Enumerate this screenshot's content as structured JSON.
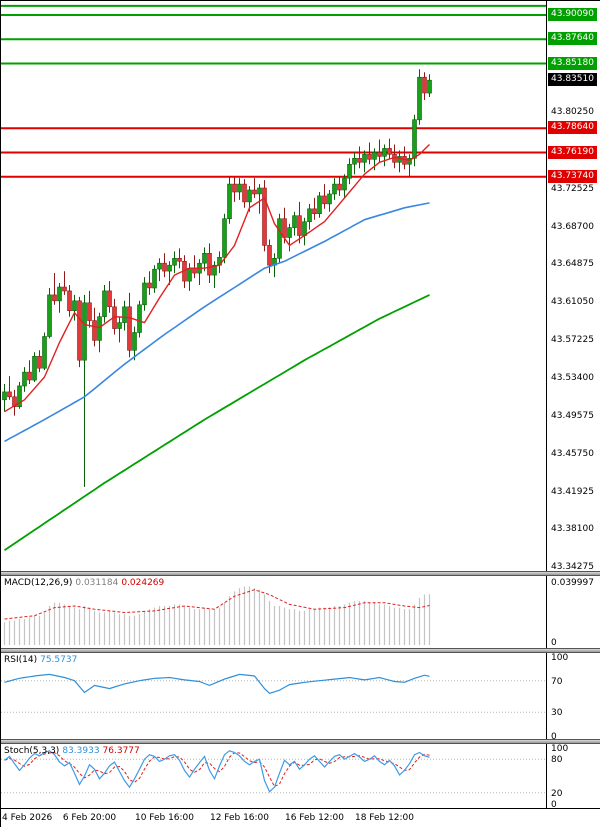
{
  "colors": {
    "up": "#18A018",
    "down": "#E23A3A",
    "up_dark": "#0B600B",
    "down_dark": "#8F1A1A",
    "macd_hist": "#C4C4C4",
    "signal": "#E02020",
    "rsi": "#2F8FD8",
    "stoch_k": "#3E9BE9",
    "stoch_d": "#E02020",
    "level_green": "#00A000",
    "level_red": "#E00000",
    "current_bg": "#000000"
  },
  "price_scale": {
    "max": 43.915,
    "min": 43.339,
    "ticks": [
      "43.80250",
      "43.72525",
      "43.68700",
      "43.64875",
      "43.61050",
      "43.57225",
      "43.53400",
      "43.49575",
      "43.45750",
      "43.41925",
      "43.38100",
      "43.34275"
    ]
  },
  "levels": [
    {
      "price": 43.91,
      "color": "#00A000",
      "label": null
    },
    {
      "price": 43.9009,
      "color": "#00A000",
      "label": "43.90090"
    },
    {
      "price": 43.8764,
      "color": "#00A000",
      "label": "43.87640"
    },
    {
      "price": 43.8518,
      "color": "#00A000",
      "label": "43.85180"
    },
    {
      "price": 43.7864,
      "color": "#E00000",
      "label": "43.78640"
    },
    {
      "price": 43.7619,
      "color": "#E00000",
      "label": "43.76190"
    },
    {
      "price": 43.7374,
      "color": "#E00000",
      "label": "43.73740"
    }
  ],
  "current_price": {
    "value": 43.8351,
    "label": "43.83510"
  },
  "indicators": {
    "macd": {
      "name": "MACD(12,26,9)",
      "value1": "0.031184",
      "value2": "0.024269",
      "scale_max_label": "0.039997",
      "scale_min_label": "0"
    },
    "rsi": {
      "name": "RSI(14)",
      "value": "75.5737",
      "ticks": [
        100,
        70,
        30,
        0
      ]
    },
    "stoch": {
      "name": "Stoch(5,3,3)",
      "value1": "83.3933",
      "value2": "76.3777",
      "ticks": [
        100,
        80,
        20,
        0
      ]
    }
  },
  "time_axis": {
    "labels": [
      {
        "text": "4 Feb 2026",
        "i": 1
      },
      {
        "text": "6 Feb 20:00",
        "i": 17
      },
      {
        "text": "10 Feb 16:00",
        "i": 32
      },
      {
        "text": "12 Feb 16:00",
        "i": 47
      },
      {
        "text": "16 Feb 12:00",
        "i": 62
      },
      {
        "text": "18 Feb 12:00",
        "i": 76
      }
    ]
  },
  "chart_data": [
    {
      "type": "candlestick",
      "title": "",
      "ylim": [
        43.339,
        43.915
      ],
      "candles": [
        [
          43.512,
          43.528,
          43.5,
          43.52
        ],
        [
          43.52,
          43.536,
          43.512,
          43.515
        ],
        [
          43.515,
          43.522,
          43.496,
          43.505
        ],
        [
          43.505,
          43.53,
          43.503,
          43.526
        ],
        [
          43.526,
          43.545,
          43.52,
          43.54
        ],
        [
          43.54,
          43.552,
          43.528,
          43.532
        ],
        [
          43.532,
          43.56,
          43.53,
          43.556
        ],
        [
          43.556,
          43.562,
          43.54,
          43.544
        ],
        [
          43.544,
          43.58,
          43.542,
          43.576
        ],
        [
          43.576,
          43.625,
          43.574,
          43.618
        ],
        [
          43.618,
          43.64,
          43.608,
          43.612
        ],
        [
          43.612,
          43.63,
          43.6,
          43.626
        ],
        [
          43.626,
          43.642,
          43.618,
          43.622
        ],
        [
          43.622,
          43.628,
          43.596,
          43.602
        ],
        [
          43.602,
          43.618,
          43.592,
          43.612
        ],
        [
          43.612,
          43.616,
          43.545,
          43.552
        ],
        [
          43.552,
          43.618,
          43.424,
          43.61
        ],
        [
          43.61,
          43.622,
          43.585,
          43.592
        ],
        [
          43.592,
          43.605,
          43.566,
          43.572
        ],
        [
          43.572,
          43.6,
          43.56,
          43.596
        ],
        [
          43.596,
          43.628,
          43.59,
          43.622
        ],
        [
          43.622,
          43.632,
          43.6,
          43.606
        ],
        [
          43.606,
          43.614,
          43.578,
          43.584
        ],
        [
          43.584,
          43.596,
          43.57,
          43.59
        ],
        [
          43.59,
          43.612,
          43.582,
          43.606
        ],
        [
          43.606,
          43.62,
          43.555,
          43.562
        ],
        [
          43.562,
          43.586,
          43.552,
          43.58
        ],
        [
          43.58,
          43.612,
          43.575,
          43.608
        ],
        [
          43.608,
          43.636,
          43.602,
          43.63
        ],
        [
          43.63,
          43.642,
          43.618,
          43.625
        ],
        [
          43.625,
          43.648,
          43.62,
          43.644
        ],
        [
          43.644,
          43.655,
          43.632,
          43.65
        ],
        [
          43.65,
          43.66,
          43.636,
          43.642
        ],
        [
          43.642,
          43.652,
          43.628,
          43.648
        ],
        [
          43.648,
          43.662,
          43.64,
          43.655
        ],
        [
          43.655,
          43.665,
          43.645,
          43.652
        ],
        [
          43.652,
          43.658,
          43.625,
          43.632
        ],
        [
          43.632,
          43.65,
          43.622,
          43.645
        ],
        [
          43.645,
          43.658,
          43.635,
          43.64
        ],
        [
          43.64,
          43.654,
          43.628,
          43.65
        ],
        [
          43.65,
          43.666,
          43.642,
          43.66
        ],
        [
          43.66,
          43.67,
          43.63,
          43.638
        ],
        [
          43.638,
          43.652,
          43.625,
          43.648
        ],
        [
          43.648,
          43.662,
          43.64,
          43.656
        ],
        [
          43.656,
          43.7,
          43.65,
          43.695
        ],
        [
          43.695,
          43.738,
          43.69,
          43.73
        ],
        [
          43.73,
          43.737,
          43.712,
          43.722
        ],
        [
          43.722,
          43.736,
          43.714,
          43.73
        ],
        [
          43.73,
          43.735,
          43.706,
          43.712
        ],
        [
          43.712,
          43.728,
          43.702,
          43.724
        ],
        [
          43.724,
          43.736,
          43.716,
          43.72
        ],
        [
          43.72,
          43.73,
          43.7,
          43.726
        ],
        [
          43.726,
          43.734,
          43.662,
          43.668
        ],
        [
          43.668,
          43.674,
          43.64,
          43.648
        ],
        [
          43.648,
          43.66,
          43.636,
          43.655
        ],
        [
          43.655,
          43.7,
          43.65,
          43.695
        ],
        [
          43.695,
          43.706,
          43.67,
          43.676
        ],
        [
          43.676,
          43.69,
          43.662,
          43.686
        ],
        [
          43.686,
          43.702,
          43.678,
          43.698
        ],
        [
          43.698,
          43.712,
          43.67,
          43.678
        ],
        [
          43.678,
          43.696,
          43.668,
          43.692
        ],
        [
          43.692,
          43.71,
          43.684,
          43.705
        ],
        [
          43.705,
          43.716,
          43.694,
          43.7
        ],
        [
          43.7,
          43.722,
          43.696,
          43.718
        ],
        [
          43.718,
          43.73,
          43.705,
          43.71
        ],
        [
          43.71,
          43.724,
          43.702,
          43.72
        ],
        [
          43.72,
          43.736,
          43.714,
          43.73
        ],
        [
          43.73,
          43.738,
          43.718,
          43.724
        ],
        [
          43.724,
          43.74,
          43.716,
          43.736
        ],
        [
          43.736,
          43.756,
          43.73,
          43.75
        ],
        [
          43.75,
          43.762,
          43.74,
          43.756
        ],
        [
          43.756,
          43.768,
          43.746,
          43.752
        ],
        [
          43.752,
          43.764,
          43.742,
          43.76
        ],
        [
          43.76,
          43.772,
          43.75,
          43.755
        ],
        [
          43.755,
          43.766,
          43.744,
          43.762
        ],
        [
          43.762,
          43.775,
          43.752,
          43.758
        ],
        [
          43.758,
          43.77,
          43.748,
          43.766
        ],
        [
          43.766,
          43.776,
          43.755,
          43.76
        ],
        [
          43.76,
          43.77,
          43.746,
          43.752
        ],
        [
          43.752,
          43.764,
          43.742,
          43.758
        ],
        [
          43.758,
          43.768,
          43.745,
          43.75
        ],
        [
          43.75,
          43.76,
          43.738,
          43.756
        ],
        [
          43.756,
          43.8,
          43.748,
          43.795
        ],
        [
          43.795,
          43.846,
          43.79,
          43.838
        ],
        [
          43.838,
          43.843,
          43.815,
          43.822
        ],
        [
          43.822,
          43.841,
          43.818,
          43.835
        ]
      ],
      "overlays": [
        {
          "name": "ma-fast-red-line",
          "color": "#E02020",
          "width": 1.4,
          "points": [
            [
              0,
              43.5
            ],
            [
              4,
              43.512
            ],
            [
              8,
              43.535
            ],
            [
              11,
              43.57
            ],
            [
              14,
              43.6
            ],
            [
              16,
              43.588
            ],
            [
              19,
              43.585
            ],
            [
              22,
              43.596
            ],
            [
              25,
              43.595
            ],
            [
              28,
              43.59
            ],
            [
              31,
              43.615
            ],
            [
              34,
              43.638
            ],
            [
              37,
              43.645
            ],
            [
              40,
              43.645
            ],
            [
              43,
              43.648
            ],
            [
              46,
              43.668
            ],
            [
              49,
              43.706
            ],
            [
              52,
              43.716
            ],
            [
              54,
              43.69
            ],
            [
              57,
              43.668
            ],
            [
              60,
              43.678
            ],
            [
              64,
              43.692
            ],
            [
              68,
              43.716
            ],
            [
              72,
              43.74
            ],
            [
              75,
              43.752
            ],
            [
              78,
              43.757
            ],
            [
              81,
              43.754
            ],
            [
              83,
              43.76
            ],
            [
              85,
              43.77
            ]
          ]
        },
        {
          "name": "ma-mid-blue-line",
          "color": "#3A87E0",
          "width": 1.6,
          "points": [
            [
              0,
              43.47
            ],
            [
              8,
              43.492
            ],
            [
              16,
              43.515
            ],
            [
              24,
              43.548
            ],
            [
              32,
              43.578
            ],
            [
              40,
              43.606
            ],
            [
              48,
              43.632
            ],
            [
              52,
              43.645
            ],
            [
              56,
              43.652
            ],
            [
              64,
              43.672
            ],
            [
              72,
              43.694
            ],
            [
              80,
              43.706
            ],
            [
              85,
              43.711
            ]
          ]
        },
        {
          "name": "ma-slow-green-line",
          "color": "#00A000",
          "width": 1.8,
          "points": [
            [
              0,
              43.36
            ],
            [
              20,
              43.428
            ],
            [
              40,
              43.492
            ],
            [
              60,
              43.552
            ],
            [
              75,
              43.594
            ],
            [
              85,
              43.618
            ]
          ]
        }
      ]
    },
    {
      "type": "bar",
      "title": "MACD(12,26,9)",
      "ylim": [
        0,
        0.039997
      ],
      "values": [
        0.014,
        0.015,
        0.015,
        0.016,
        0.016,
        0.017,
        0.018,
        0.018,
        0.02,
        0.024,
        0.026,
        0.026,
        0.025,
        0.024,
        0.023,
        0.022,
        0.024,
        0.023,
        0.021,
        0.02,
        0.02,
        0.021,
        0.02,
        0.019,
        0.019,
        0.018,
        0.018,
        0.019,
        0.021,
        0.022,
        0.023,
        0.024,
        0.024,
        0.024,
        0.025,
        0.025,
        0.024,
        0.023,
        0.022,
        0.022,
        0.023,
        0.022,
        0.022,
        0.023,
        0.026,
        0.03,
        0.033,
        0.035,
        0.036,
        0.036,
        0.035,
        0.034,
        0.031,
        0.027,
        0.024,
        0.024,
        0.023,
        0.022,
        0.022,
        0.021,
        0.021,
        0.022,
        0.022,
        0.023,
        0.023,
        0.023,
        0.024,
        0.024,
        0.025,
        0.026,
        0.027,
        0.027,
        0.027,
        0.026,
        0.026,
        0.025,
        0.025,
        0.024,
        0.023,
        0.023,
        0.022,
        0.022,
        0.025,
        0.029,
        0.031,
        0.0312
      ],
      "signal_points": [
        [
          0,
          0.016
        ],
        [
          6,
          0.018
        ],
        [
          10,
          0.023
        ],
        [
          14,
          0.024
        ],
        [
          18,
          0.022
        ],
        [
          24,
          0.02
        ],
        [
          30,
          0.021
        ],
        [
          36,
          0.024
        ],
        [
          42,
          0.022
        ],
        [
          46,
          0.03
        ],
        [
          50,
          0.034
        ],
        [
          53,
          0.031
        ],
        [
          57,
          0.025
        ],
        [
          62,
          0.022
        ],
        [
          68,
          0.023
        ],
        [
          72,
          0.026
        ],
        [
          76,
          0.026
        ],
        [
          80,
          0.024
        ],
        [
          83,
          0.023
        ],
        [
          85,
          0.0243
        ]
      ]
    },
    {
      "type": "line",
      "title": "RSI(14)",
      "ylim": [
        0,
        100
      ],
      "levels": [
        70,
        30
      ],
      "points": [
        [
          0,
          68
        ],
        [
          3,
          73
        ],
        [
          6,
          76
        ],
        [
          9,
          78
        ],
        [
          12,
          74
        ],
        [
          14,
          70
        ],
        [
          16,
          55
        ],
        [
          18,
          64
        ],
        [
          21,
          60
        ],
        [
          24,
          66
        ],
        [
          27,
          70
        ],
        [
          30,
          73
        ],
        [
          33,
          74
        ],
        [
          36,
          71
        ],
        [
          39,
          69
        ],
        [
          41,
          64
        ],
        [
          44,
          72
        ],
        [
          47,
          78
        ],
        [
          50,
          76
        ],
        [
          52,
          60
        ],
        [
          53,
          54
        ],
        [
          55,
          58
        ],
        [
          57,
          65
        ],
        [
          60,
          68
        ],
        [
          63,
          70
        ],
        [
          66,
          72
        ],
        [
          69,
          74
        ],
        [
          72,
          71
        ],
        [
          75,
          74
        ],
        [
          78,
          69
        ],
        [
          80,
          68
        ],
        [
          82,
          73
        ],
        [
          84,
          77
        ],
        [
          85,
          75.57
        ]
      ]
    },
    {
      "type": "line",
      "title": "Stoch(5,3,3)",
      "ylim": [
        0,
        100
      ],
      "levels": [
        80,
        20
      ],
      "d_smoothing": 3,
      "k_values": [
        78,
        85,
        72,
        60,
        70,
        82,
        90,
        86,
        92,
        95,
        88,
        75,
        68,
        74,
        55,
        35,
        50,
        70,
        62,
        45,
        55,
        68,
        75,
        58,
        42,
        30,
        45,
        62,
        80,
        88,
        85,
        76,
        80,
        86,
        88,
        78,
        60,
        48,
        62,
        74,
        85,
        60,
        45,
        68,
        88,
        95,
        92,
        86,
        76,
        70,
        76,
        80,
        42,
        22,
        30,
        55,
        78,
        70,
        76,
        62,
        70,
        80,
        86,
        76,
        66,
        76,
        85,
        88,
        80,
        85,
        90,
        84,
        76,
        80,
        86,
        76,
        70,
        78,
        68,
        52,
        60,
        72,
        88,
        92,
        86,
        83.4
      ]
    }
  ]
}
